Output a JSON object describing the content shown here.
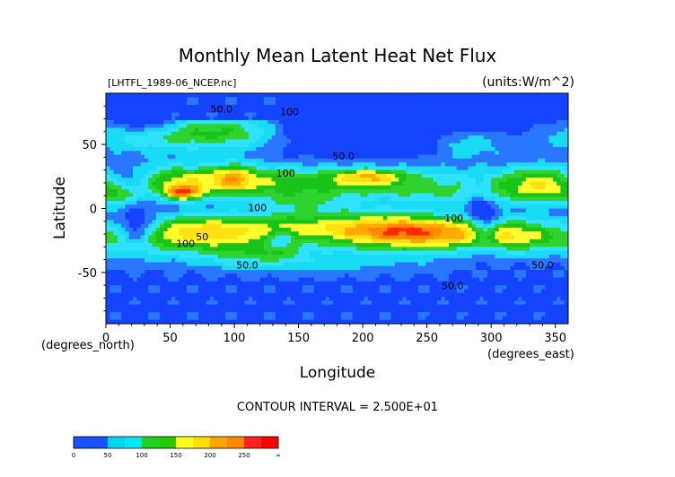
{
  "chart_data": {
    "type": "heatmap",
    "title": "Monthly Mean Latent Heat Net Flux",
    "source_label": "[LHTFL_1989-06_NCEP.nc]",
    "units_label": "(units:W/m^2)",
    "xlabel": "Longitude",
    "ylabel": "Latitude",
    "x_units": "(degrees_east)",
    "y_units": "(degrees_north)",
    "xlim": [
      0,
      360
    ],
    "ylim": [
      -90,
      90
    ],
    "x_ticks": [
      0,
      50,
      100,
      150,
      200,
      250,
      300,
      350
    ],
    "y_ticks": [
      -50,
      0,
      50
    ],
    "contour_interval_label": "CONTOUR INTERVAL = 2.500E+01",
    "contour_labels": [
      {
        "text": "50.0",
        "x": 90,
        "y": 75
      },
      {
        "text": "100",
        "x": 143,
        "y": 73
      },
      {
        "text": "50.0",
        "x": 185,
        "y": 38
      },
      {
        "text": "100",
        "x": 140,
        "y": 25
      },
      {
        "text": "100",
        "x": 62,
        "y": -30
      },
      {
        "text": "50",
        "x": 75,
        "y": -25
      },
      {
        "text": "100",
        "x": 118,
        "y": -2
      },
      {
        "text": "50.0",
        "x": 110,
        "y": -47
      },
      {
        "text": "100",
        "x": 271,
        "y": -10
      },
      {
        "text": "50.0",
        "x": 270,
        "y": -63
      },
      {
        "text": "50.0",
        "x": 340,
        "y": -47
      }
    ],
    "colorbar": {
      "ticks": [
        "0",
        "50",
        "100",
        "150",
        "200",
        "250",
        "∞"
      ],
      "colors": [
        "#1a50ff",
        "#1a50ff",
        "#00d4f0",
        "#00e6ff",
        "#22d022",
        "#22cc00",
        "#ffff22",
        "#ffe000",
        "#ffa500",
        "#ff8800",
        "#ff2222",
        "#ff0000"
      ]
    },
    "level_colors": [
      "#1444ff",
      "#2a77ff",
      "#19dbf3",
      "#2fe3ff",
      "#2fd22f",
      "#18c418",
      "#ffff30",
      "#ffe010",
      "#ffaa00",
      "#ff8800",
      "#ff2a00",
      "#e00000"
    ]
  }
}
